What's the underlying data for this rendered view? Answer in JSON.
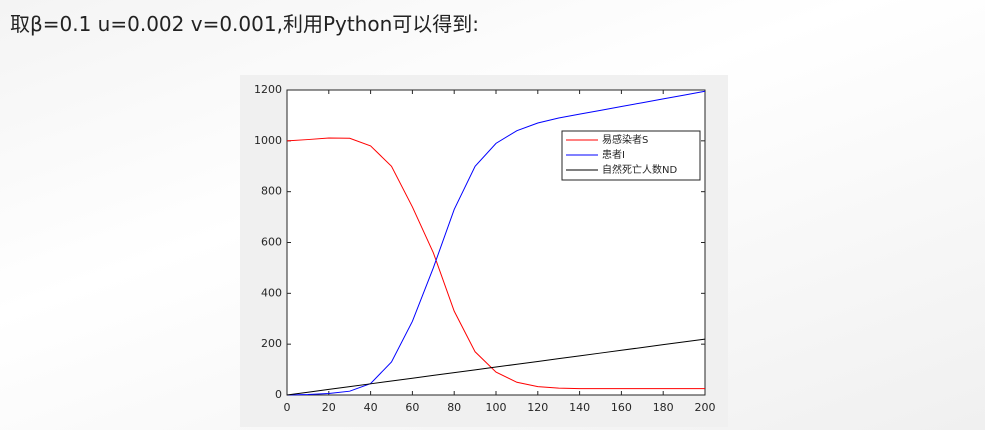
{
  "heading": "取β=0.1 u=0.002 v=0.001,利用Python可以得到:",
  "chart_data": {
    "type": "line",
    "x": [
      0,
      10,
      20,
      30,
      40,
      50,
      60,
      70,
      80,
      90,
      100,
      110,
      120,
      130,
      140,
      150,
      160,
      170,
      180,
      190,
      200
    ],
    "xlim": [
      0,
      200
    ],
    "xticks": [
      0,
      20,
      40,
      60,
      80,
      100,
      120,
      140,
      160,
      180,
      200
    ],
    "ylim": [
      0,
      1200
    ],
    "yticks": [
      0,
      200,
      400,
      600,
      800,
      1000,
      1200
    ],
    "legend": "northeast",
    "series": [
      {
        "name": "易感染者S",
        "color": "#ff0000",
        "values": [
          1000,
          1005,
          1011,
          1010,
          980,
          900,
          740,
          560,
          330,
          170,
          90,
          50,
          33,
          27,
          25,
          25,
          25,
          25,
          25,
          25,
          25
        ]
      },
      {
        "name": "患者I",
        "color": "#0000ff",
        "values": [
          0,
          2,
          6,
          15,
          45,
          130,
          290,
          500,
          730,
          900,
          990,
          1040,
          1070,
          1090,
          1105,
          1120,
          1135,
          1150,
          1165,
          1180,
          1195
        ]
      },
      {
        "name": "自然死亡人数ND",
        "color": "#000000",
        "values": [
          0,
          11,
          22,
          33,
          44,
          55,
          66,
          77,
          88,
          99,
          110,
          121,
          132,
          143,
          154,
          165,
          176,
          187,
          198,
          209,
          220
        ]
      }
    ]
  }
}
